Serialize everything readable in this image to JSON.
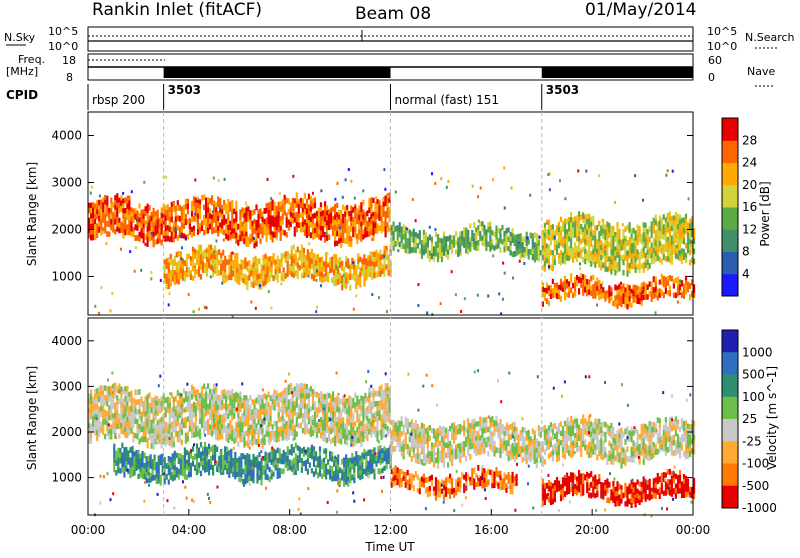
{
  "header": {
    "station": "Rankin Inlet (fitACF)",
    "beam": "Beam 08",
    "date": "01/May/2014"
  },
  "sky_panel": {
    "left_label": "N.Sky",
    "right_label": "N.Search",
    "left_ticks": [
      "10^5",
      "10^0"
    ],
    "right_ticks": [
      "10^5",
      "10^0"
    ]
  },
  "freq_panel": {
    "left_label_1": "Freq.",
    "left_label_2": "[MHz]",
    "left_ticks": [
      "18",
      "8"
    ],
    "right_label": "Nave",
    "right_ticks": [
      "60",
      "0"
    ]
  },
  "cpid_panel": {
    "label": "CPID",
    "segments": [
      {
        "start_hour": 0,
        "label": "rbsp 200"
      },
      {
        "start_hour": 3,
        "label": "3503"
      },
      {
        "start_hour": 12,
        "label": "normal (fast) 151"
      },
      {
        "start_hour": 18,
        "label": "3503"
      }
    ]
  },
  "x_axis": {
    "label": "Time UT",
    "ticks": [
      "00:00",
      "04:00",
      "08:00",
      "12:00",
      "16:00",
      "20:00",
      "00:00"
    ]
  },
  "power_panel": {
    "ylabel": "Slant Range [km]",
    "y_ticks": [
      "1000",
      "2000",
      "3000",
      "4000"
    ],
    "colorbar_label": "Power [dB]",
    "colorbar_ticks": [
      "4",
      "8",
      "12",
      "16",
      "20",
      "24",
      "28"
    ],
    "colors": [
      "#1a1aff",
      "#2a5fb0",
      "#3f8f6a",
      "#5aaa46",
      "#d2d23c",
      "#ffaa00",
      "#ff6600",
      "#e80000"
    ]
  },
  "velocity_panel": {
    "ylabel": "Slant Range [km]",
    "y_ticks": [
      "1000",
      "2000",
      "3000",
      "4000"
    ],
    "colorbar_label": "Velocity [m s^-1]",
    "colorbar_ticks": [
      "1000",
      "500",
      "100",
      "25",
      "-25",
      "-100",
      "-500",
      "-1000"
    ],
    "colors": [
      "#2020b0",
      "#2f6fbf",
      "#2f8f6f",
      "#6cc04a",
      "#c8c8c8",
      "#ffaa33",
      "#ff7a00",
      "#e80000"
    ]
  },
  "chart_data": [
    {
      "type": "heatmap",
      "title": "Power",
      "xlabel": "Time UT",
      "ylabel": "Slant Range [km]",
      "x_range_hours": [
        0,
        24
      ],
      "ylim": [
        180,
        4500
      ],
      "colorbar": "Power [dB]",
      "bands": [
        {
          "hour_start": 0,
          "hour_end": 12,
          "range_low_km": 1800,
          "range_high_km": 2600,
          "power_db": 24
        },
        {
          "hour_start": 3,
          "hour_end": 12,
          "range_low_km": 900,
          "range_high_km": 1500,
          "power_db": 22
        },
        {
          "hour_start": 12,
          "hour_end": 18,
          "range_low_km": 1500,
          "range_high_km": 2000,
          "power_db": 12
        },
        {
          "hour_start": 18,
          "hour_end": 24,
          "range_low_km": 1200,
          "range_high_km": 2200,
          "power_db": 16
        },
        {
          "hour_start": 18,
          "hour_end": 24,
          "range_low_km": 500,
          "range_high_km": 900,
          "power_db": 26
        }
      ]
    },
    {
      "type": "heatmap",
      "title": "Velocity",
      "xlabel": "Time UT",
      "ylabel": "Slant Range [km]",
      "x_range_hours": [
        0,
        24
      ],
      "ylim": [
        180,
        4500
      ],
      "colorbar": "Velocity [m s^-1]",
      "bands": [
        {
          "hour_start": 0,
          "hour_end": 12,
          "range_low_km": 1800,
          "range_high_km": 2900,
          "velocity_ms": 0
        },
        {
          "hour_start": 1,
          "hour_end": 12,
          "range_low_km": 1000,
          "range_high_km": 1600,
          "velocity_ms": 300
        },
        {
          "hour_start": 12,
          "hour_end": 17,
          "range_low_km": 700,
          "range_high_km": 1100,
          "velocity_ms": -300
        },
        {
          "hour_start": 12,
          "hour_end": 24,
          "range_low_km": 1400,
          "range_high_km": 2200,
          "velocity_ms": 0
        },
        {
          "hour_start": 18,
          "hour_end": 24,
          "range_low_km": 500,
          "range_high_km": 1000,
          "velocity_ms": -500
        }
      ]
    }
  ]
}
